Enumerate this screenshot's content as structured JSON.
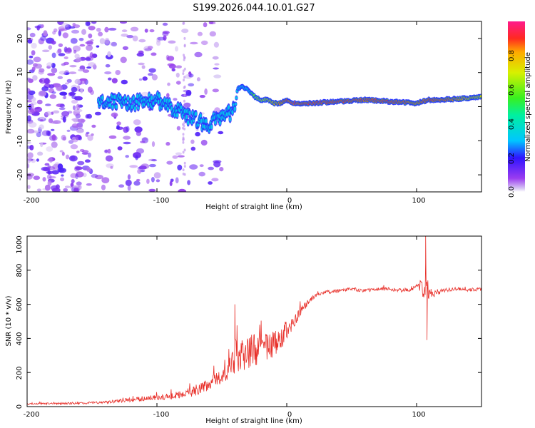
{
  "title": "S199.2026.044.10.01.G27",
  "colors": {
    "snr_line": "#e8302a",
    "frame": "#000000",
    "scatter_low": "#8a2be2",
    "ridge_core": "#e8302a",
    "ridge_mid": "#00e060",
    "ridge_edge": "#1e3cff"
  },
  "chart_data": [
    {
      "type": "heatmap",
      "title": "S199.2026.044.10.01.G27",
      "xlabel": "Height of straight line (km)",
      "ylabel": "Frequency (Hz)",
      "xlim": [
        -200,
        150
      ],
      "ylim": [
        -25,
        25
      ],
      "xticks": [
        -200,
        -100,
        0,
        100
      ],
      "yticks": [
        20,
        10,
        0,
        -10,
        -20
      ],
      "colorbar": {
        "label": "Normalized spectral amplitude",
        "range": [
          0.0,
          1.0
        ],
        "ticks": [
          "0.0",
          "0.2",
          "0.4",
          "0.6",
          "0.8"
        ],
        "tick_values": [
          0.0,
          0.2,
          0.4,
          0.6,
          0.8
        ]
      },
      "ridge": {
        "x": [
          -145,
          -130,
          -120,
          -100,
          -90,
          -80,
          -70,
          -60,
          -50,
          -45,
          -40,
          -38,
          -35,
          -30,
          -25,
          -20,
          -15,
          -10,
          -5,
          0,
          5,
          10,
          20,
          40,
          60,
          80,
          100,
          110,
          120,
          140,
          150
        ],
        "freq": [
          1,
          2,
          1,
          2,
          0,
          -2,
          -4,
          -5,
          -3,
          -2,
          -1,
          5,
          6,
          5,
          3,
          2,
          2,
          1,
          1,
          2,
          1,
          1,
          1,
          1.5,
          2,
          1.5,
          1,
          2,
          2,
          2.5,
          3
        ],
        "amplitude": [
          0.3,
          0.4,
          0.4,
          0.35,
          0.3,
          0.35,
          0.3,
          0.25,
          0.3,
          0.25,
          0.2,
          0.35,
          0.4,
          0.5,
          0.6,
          0.7,
          0.75,
          0.8,
          0.85,
          0.9,
          0.95,
          0.9,
          0.92,
          0.9,
          0.88,
          0.9,
          0.85,
          0.9,
          0.88,
          0.8,
          0.75
        ]
      }
    },
    {
      "type": "line",
      "xlabel": "Height of straight line (km)",
      "ylabel": "SNR (10 * v/v)",
      "xlim": [
        -200,
        150
      ],
      "ylim": [
        0,
        1000
      ],
      "xticks": [
        -200,
        -100,
        0,
        100
      ],
      "yticks": [
        0,
        200,
        400,
        600,
        800,
        1000
      ],
      "series": [
        {
          "name": "SNR",
          "x": [
            -200,
            -180,
            -160,
            -140,
            -120,
            -100,
            -90,
            -80,
            -70,
            -60,
            -55,
            -50,
            -45,
            -40,
            -38,
            -35,
            -30,
            -25,
            -20,
            -15,
            -10,
            -5,
            0,
            5,
            10,
            15,
            20,
            30,
            40,
            50,
            60,
            70,
            80,
            90,
            100,
            105,
            107,
            108,
            110,
            120,
            130,
            140,
            150
          ],
          "values": [
            15,
            18,
            20,
            25,
            40,
            55,
            60,
            70,
            95,
            130,
            160,
            180,
            200,
            300,
            280,
            320,
            320,
            330,
            330,
            350,
            360,
            380,
            450,
            480,
            550,
            600,
            640,
            670,
            680,
            690,
            680,
            690,
            690,
            680,
            700,
            700,
            720,
            680,
            660,
            680,
            690,
            685,
            690
          ],
          "spread": [
            10,
            12,
            12,
            15,
            25,
            35,
            40,
            50,
            60,
            70,
            80,
            90,
            110,
            220,
            200,
            230,
            200,
            190,
            180,
            170,
            160,
            140,
            110,
            90,
            60,
            40,
            25,
            20,
            20,
            20,
            20,
            20,
            20,
            25,
            30,
            120,
            300,
            250,
            60,
            25,
            20,
            20,
            20
          ]
        }
      ],
      "annotations": [
        {
          "x": -40,
          "y": 600
        },
        {
          "x": 107,
          "y": 1000
        },
        {
          "x": 108,
          "y": 390
        }
      ]
    }
  ]
}
